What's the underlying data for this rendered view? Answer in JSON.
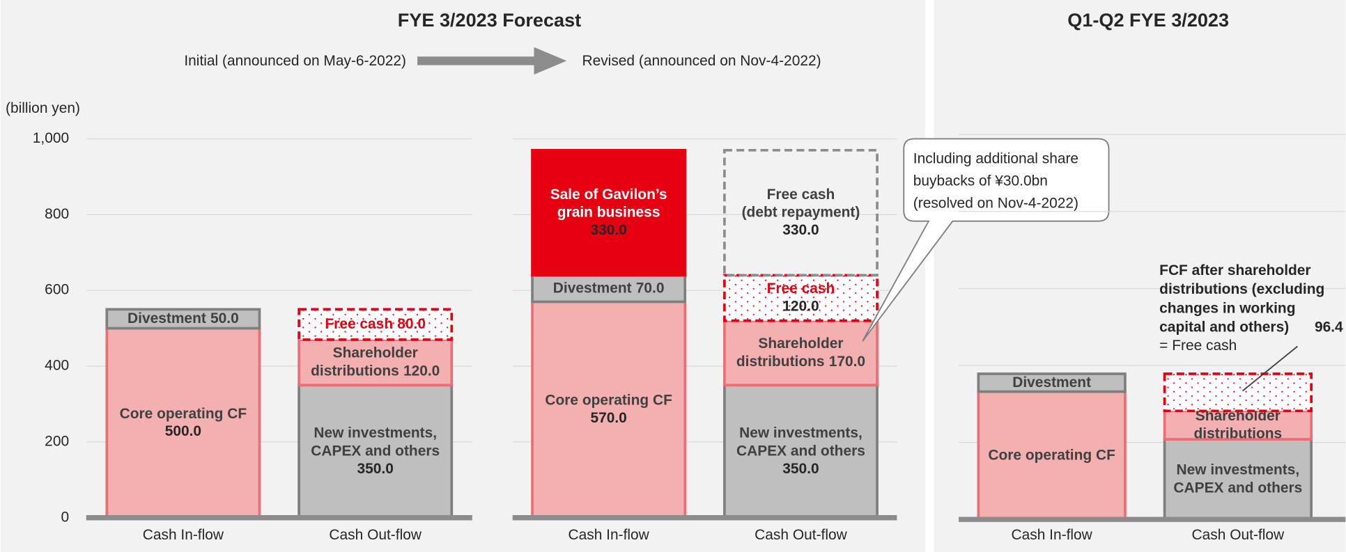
{
  "chart_data": [
    {
      "type": "stacked_bar",
      "title": "FYE 3/2023 Forecast",
      "subtitle": "Initial (announced on May-6-2022)",
      "ylabel": "(billion yen)",
      "categories": [
        "Cash In-flow",
        "Cash Out-flow"
      ],
      "ylim": [
        0,
        1000
      ],
      "yticks": [
        0,
        200,
        400,
        600,
        800,
        {
          "value": 1000,
          "label": "1,000"
        }
      ],
      "grid": true,
      "series": [
        {
          "name": [
            "Core operating CF"
          ],
          "color": "#f4b0b0",
          "border": "#eb6e76",
          "label_color": "#404040",
          "values": [
            500,
            null
          ],
          "value_labels": [
            "500.0",
            null
          ]
        },
        {
          "name": [
            "Divestment"
          ],
          "color": "#bfbfbf",
          "border": "#7f7f7f",
          "label_color": "#404040",
          "values": [
            50,
            null
          ],
          "value_labels": [
            "50.0",
            null
          ]
        },
        {
          "name": [
            "New investments,",
            "CAPEX and others"
          ],
          "color": "#bfbfbf",
          "border": "#7f7f7f",
          "label_color": "#404040",
          "values": [
            null,
            350
          ],
          "value_labels": [
            null,
            "350.0"
          ]
        },
        {
          "name": [
            "Shareholder",
            "distributions"
          ],
          "color": "#f4b0b0",
          "border": "#eb6e76",
          "label_color": "#404040",
          "values": [
            null,
            120
          ],
          "value_labels": [
            null,
            "120.0"
          ]
        },
        {
          "name": [
            "Free cash"
          ],
          "color": "#ffffff",
          "border": "#e60012",
          "dashed": true,
          "pattern": "dots",
          "label_color": "#e60012",
          "values": [
            null,
            80
          ],
          "value_labels": [
            null,
            "80.0"
          ]
        }
      ]
    },
    {
      "type": "stacked_bar",
      "subtitle": "Revised (announced on Nov-4-2022)",
      "categories": [
        "Cash In-flow",
        "Cash Out-flow"
      ],
      "ylim": [
        0,
        1000
      ],
      "annotation": [
        "Including additional share",
        "buybacks of ¥30.0bn",
        "(resolved on Nov-4-2022)"
      ],
      "series": [
        {
          "name": [
            "Core operating CF"
          ],
          "color": "#f4b0b0",
          "border": "#eb6e76",
          "label_color": "#404040",
          "values": [
            570,
            null
          ],
          "value_labels": [
            "570.0",
            null
          ]
        },
        {
          "name": [
            "Divestment"
          ],
          "color": "#bfbfbf",
          "border": "#7f7f7f",
          "label_color": "#404040",
          "values": [
            70,
            null
          ],
          "value_labels": [
            "70.0",
            null
          ]
        },
        {
          "name": [
            "Sale of Gavilon’s",
            "grain business"
          ],
          "color": "#e60012",
          "border": "#e60012",
          "label_color": "#ffffff",
          "values": [
            330,
            null
          ],
          "value_labels": [
            "330.0",
            null
          ]
        },
        {
          "name": [
            "New investments,",
            "CAPEX and others"
          ],
          "color": "#bfbfbf",
          "border": "#7f7f7f",
          "label_color": "#404040",
          "values": [
            null,
            350
          ],
          "value_labels": [
            null,
            "350.0"
          ]
        },
        {
          "name": [
            "Shareholder",
            "distributions"
          ],
          "color": "#f4b0b0",
          "border": "#eb6e76",
          "label_color": "#404040",
          "values": [
            null,
            170
          ],
          "value_labels": [
            null,
            "170.0"
          ]
        },
        {
          "name": [
            "Free cash"
          ],
          "color": "#ffffff",
          "border": "#e60012",
          "dashed": true,
          "pattern": "dots",
          "label_color": "#e60012",
          "values": [
            null,
            120
          ],
          "value_labels": [
            null,
            "120.0"
          ]
        },
        {
          "name": [
            "Free cash",
            "(debt repayment)"
          ],
          "color": "none",
          "border": "#8c8c8c",
          "dashed": true,
          "label_color": "#404040",
          "values": [
            null,
            330
          ],
          "value_labels": [
            null,
            "330.0"
          ]
        }
      ]
    },
    {
      "type": "stacked_bar",
      "title": "Q1-Q2 FYE 3/2023",
      "categories": [
        "Cash In-flow",
        "Cash Out-flow"
      ],
      "ylim": [
        0,
        1000
      ],
      "annotation": "= Free cash",
      "series": [
        {
          "name": [
            "Core operating CF"
          ],
          "color": "#f4b0b0",
          "border": "#eb6e76",
          "label_color": "#404040",
          "values": [
            332.1,
            null
          ]
        },
        {
          "name": [
            "Divestment"
          ],
          "color": "#bfbfbf",
          "border": "#7f7f7f",
          "label_color": "#404040",
          "values": [
            46.3,
            null
          ]
        },
        {
          "name": [
            "New investments,",
            "CAPEX and others"
          ],
          "color": "#bfbfbf",
          "border": "#7f7f7f",
          "label_color": "#404040",
          "values": [
            null,
            208.2
          ]
        },
        {
          "name": [
            "Shareholder",
            "distributions"
          ],
          "color": "#f4b0b0",
          "border": "#eb6e76",
          "label_color": "#404040",
          "values": [
            null,
            73.8
          ]
        },
        {
          "name": [
            "FCF after shareholder",
            "distributions (excluding",
            "changes in working",
            "capital and others)"
          ],
          "color": "#ffffff",
          "border": "#e60012",
          "dashed": true,
          "pattern": "dots",
          "label_color": "#e60012",
          "values": [
            null,
            96.4
          ]
        }
      ]
    }
  ]
}
